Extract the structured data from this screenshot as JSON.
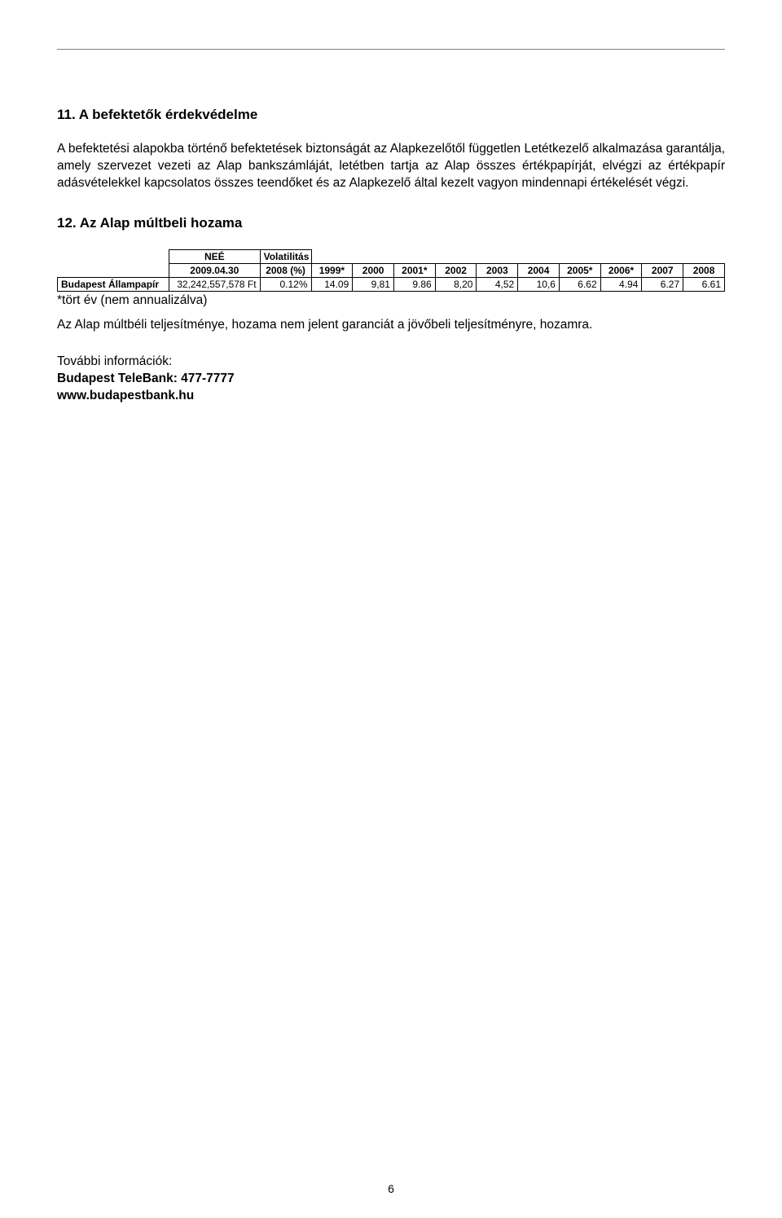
{
  "section11": {
    "heading": "11. A befektetők érdekvédelme",
    "paragraph": "A befektetési alapokba történő befektetések biztonságát az Alapkezelőtől független Letétkezelő alkalmazása garantálja, amely szervezet vezeti az Alap bankszámláját, letétben tartja az Alap összes értékpapírját, elvégzi az értékpapír adásvételekkel kapcsolatos összes teendőket és az Alapkezelő által kezelt vagyon mindennapi értékelését végzi."
  },
  "section12": {
    "heading": "12. Az Alap múltbeli hozama",
    "table": {
      "header_row1": {
        "nee": "NEÉ",
        "vol": "Volatilitás"
      },
      "header_row2": {
        "date": "2009.04.30",
        "vol_pct": "2008 (%)",
        "y1999": "1999*",
        "y2000": "2000",
        "y2001": "2001*",
        "y2002": "2002",
        "y2003": "2003",
        "y2004": "2004",
        "y2005": "2005*",
        "y2006": "2006*",
        "y2007": "2007",
        "y2008": "2008"
      },
      "data_row": {
        "name": "Budapest Állampapír",
        "nee": "32,242,557,578 Ft",
        "vol": "0.12%",
        "y1999": "14.09",
        "y2000": "9,81",
        "y2001": "9.86",
        "y2002": "8,20",
        "y2003": "4,52",
        "y2004": "10,6",
        "y2005": "6.62",
        "y2006": "4.94",
        "y2007": "6.27",
        "y2008": "6.61"
      }
    },
    "footnote": "*tört év (nem annualizálva)",
    "disclaimer": "Az Alap múltbéli teljesítménye, hozama nem jelent garanciát a jövőbeli teljesítményre, hozamra."
  },
  "info": {
    "label": "További információk:",
    "telebank": "Budapest TeleBank: 477-7777",
    "url": "www.budapestbank.hu"
  },
  "page_number": "6"
}
